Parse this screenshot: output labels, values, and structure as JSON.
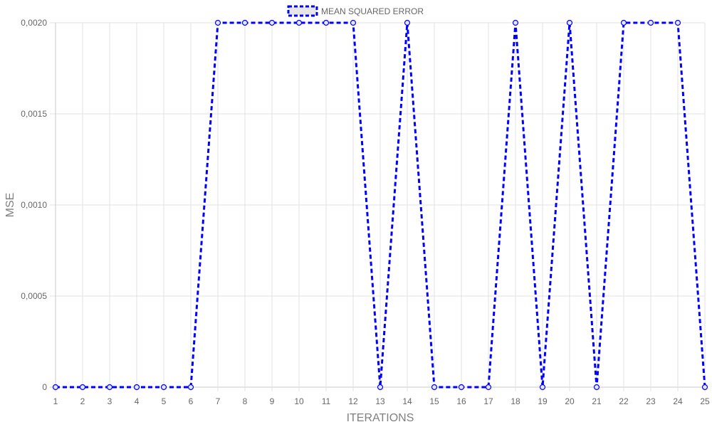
{
  "chart_data": {
    "type": "line",
    "title": "",
    "xlabel": "ITERATIONS",
    "ylabel": "MSE",
    "categories": [
      "1",
      "2",
      "3",
      "4",
      "5",
      "6",
      "7",
      "8",
      "9",
      "10",
      "11",
      "12",
      "13",
      "14",
      "15",
      "16",
      "17",
      "18",
      "19",
      "20",
      "21",
      "22",
      "23",
      "24",
      "25"
    ],
    "series": [
      {
        "name": "MEAN SQUARED ERROR",
        "color": "#0000ff",
        "line_style": "dashed",
        "values": [
          0,
          0,
          0,
          0,
          0,
          0,
          0.002,
          0.002,
          0.002,
          0.002,
          0.002,
          0.002,
          0,
          0.002,
          0,
          0,
          0,
          0.002,
          0,
          0.002,
          0,
          0.002,
          0.002,
          0.002,
          0
        ]
      }
    ],
    "ylim": [
      0,
      0.002
    ],
    "yticks": [
      "0",
      "0,0005",
      "0,0010",
      "0,0015",
      "0,0020"
    ],
    "grid": true,
    "legend_position": "top-center"
  }
}
